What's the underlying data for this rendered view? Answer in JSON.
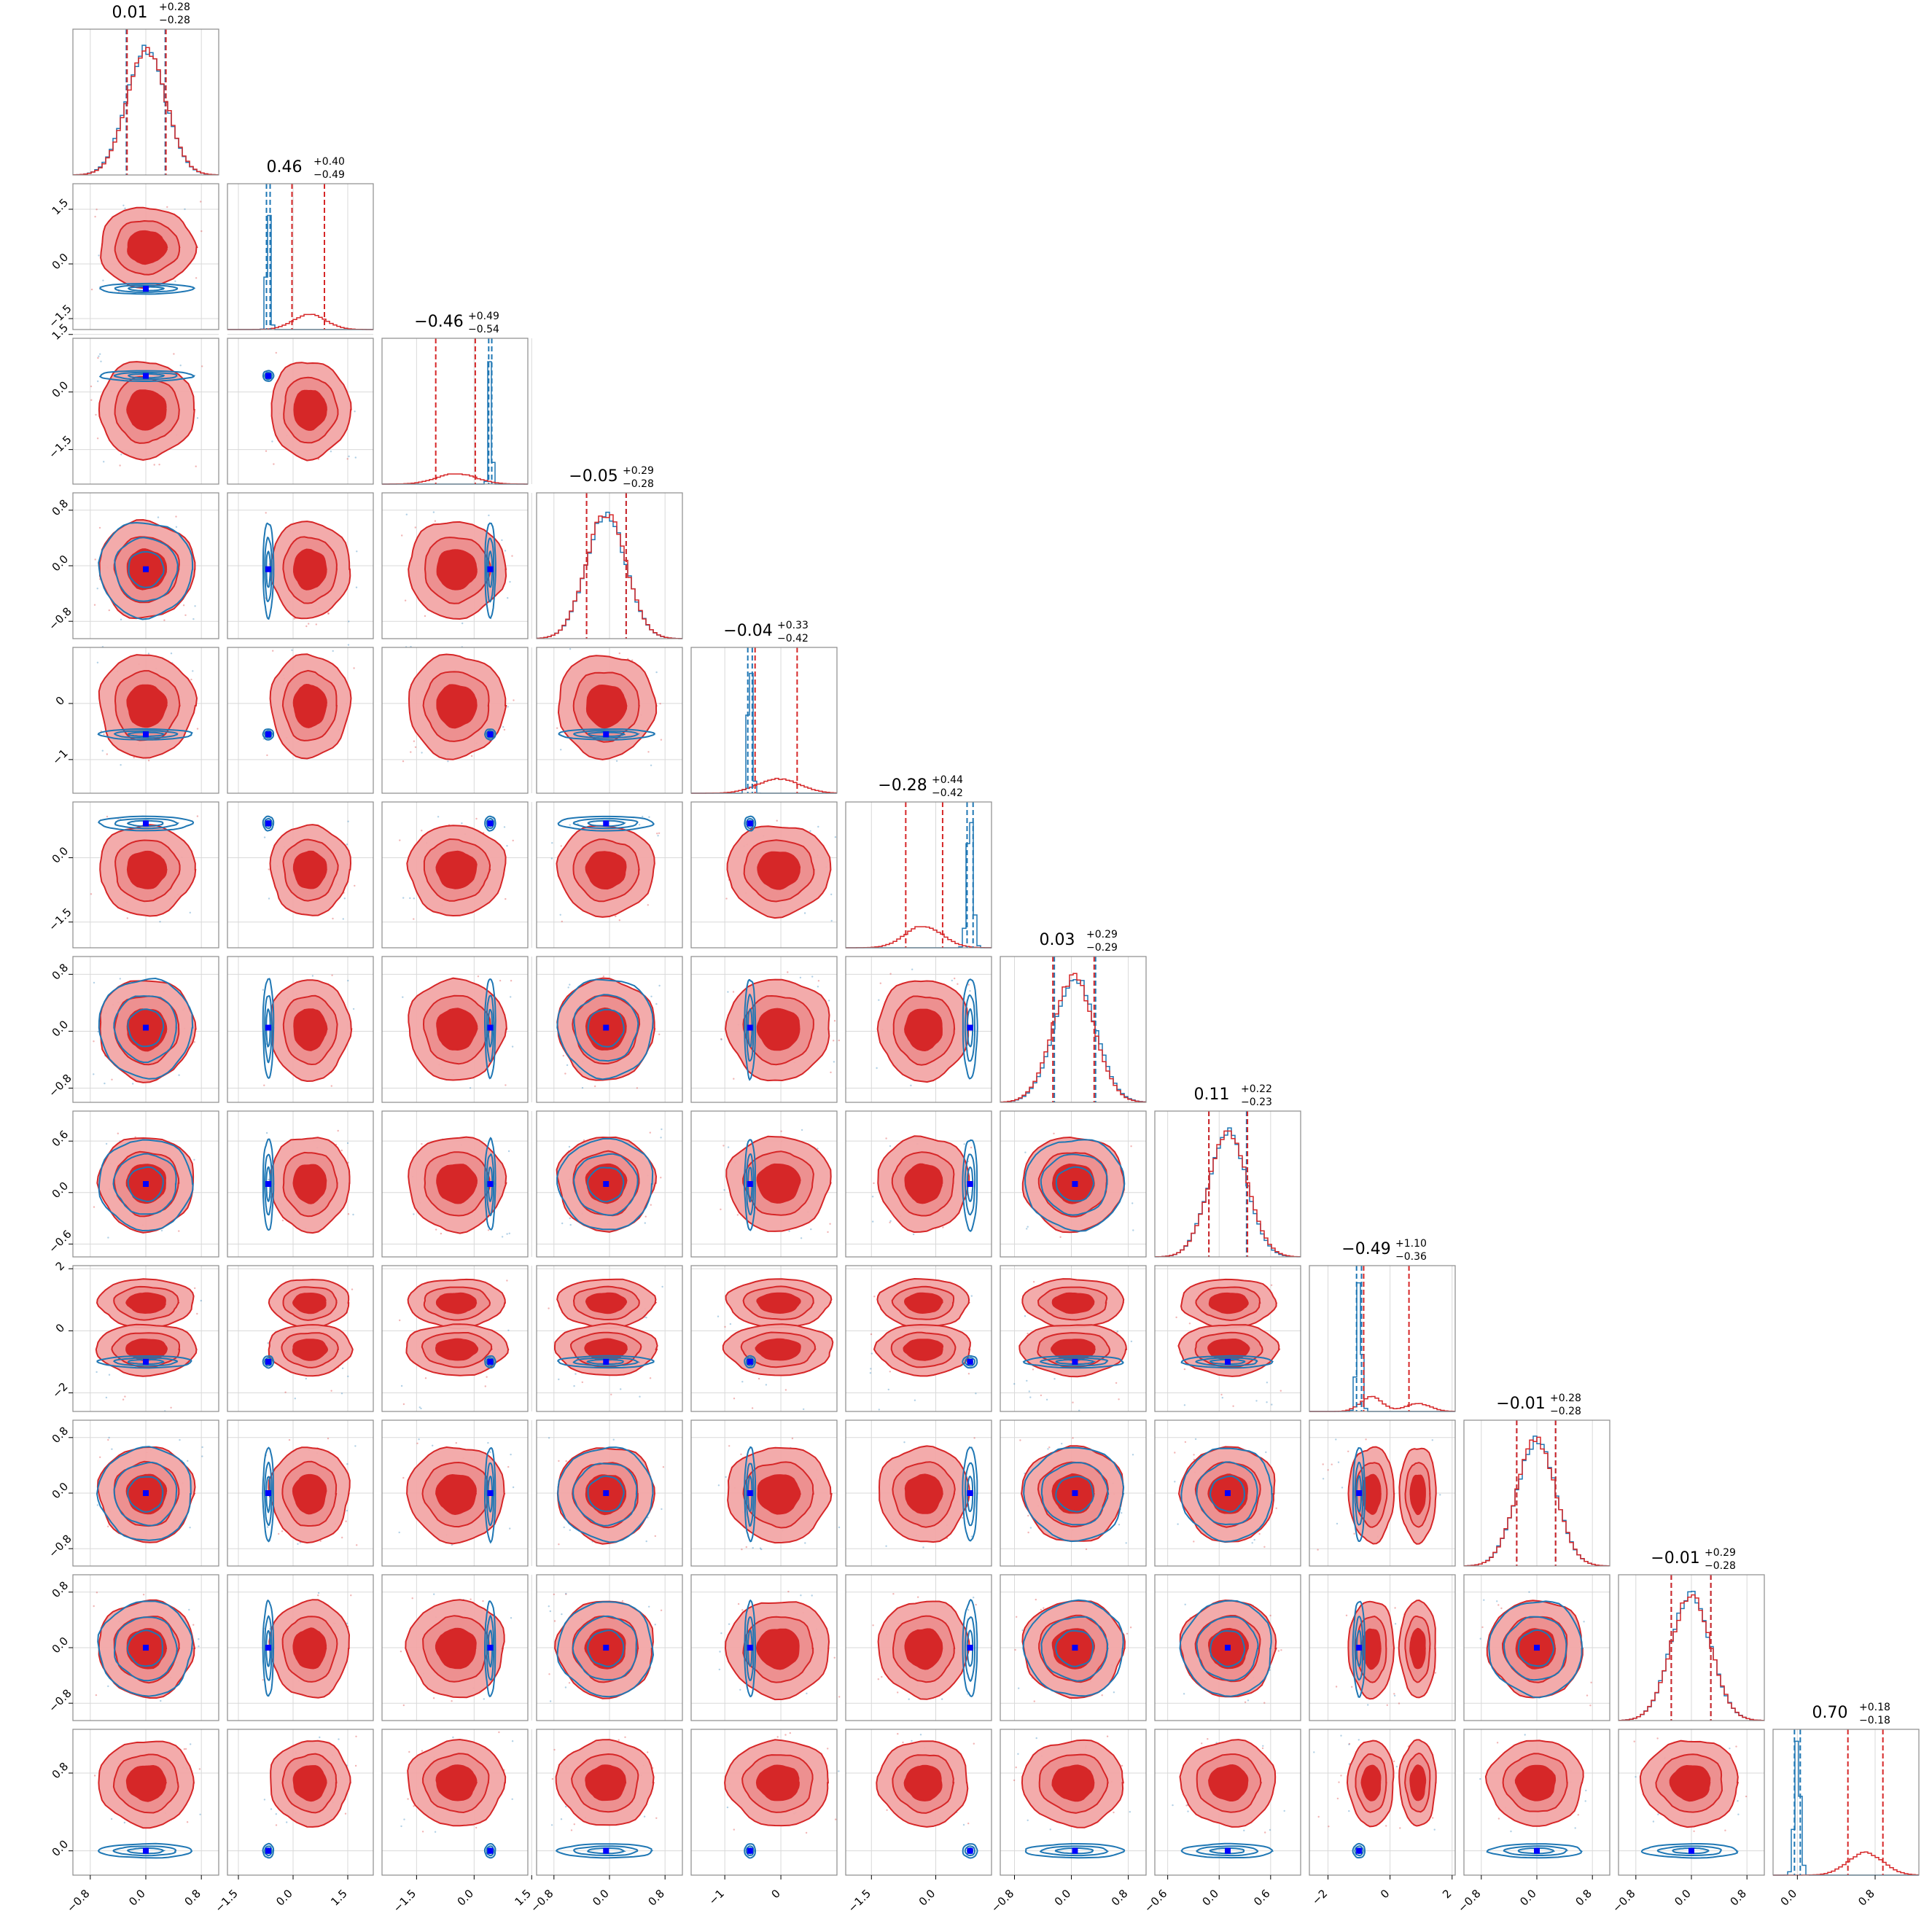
{
  "chart_data": {
    "type": "corner",
    "n_params": 12,
    "series": [
      {
        "name": "",
        "color": "#d62728",
        "style": "filled contours, 1D step histogram"
      },
      {
        "name": "",
        "color": "#1f77b4",
        "style": "line contours, 1D step histogram"
      }
    ],
    "truth_marker_color": "#0000ff",
    "grid": true,
    "diagonal_titles": [
      {
        "value": "0.01",
        "plus": "+0.28",
        "minus": "−0.28"
      },
      {
        "value": "0.46",
        "plus": "+0.40",
        "minus": "−0.49"
      },
      {
        "value": "−0.46",
        "plus": "+0.49",
        "minus": "−0.54"
      },
      {
        "value": "−0.05",
        "plus": "+0.29",
        "minus": "−0.28"
      },
      {
        "value": "−0.04",
        "plus": "+0.33",
        "minus": "−0.42"
      },
      {
        "value": "−0.28",
        "plus": "+0.44",
        "minus": "−0.42"
      },
      {
        "value": "0.03",
        "plus": "+0.29",
        "minus": "−0.29"
      },
      {
        "value": "0.11",
        "plus": "+0.22",
        "minus": "−0.23"
      },
      {
        "value": "−0.49",
        "plus": "+1.10",
        "minus": "−0.36"
      },
      {
        "value": "−0.01",
        "plus": "+0.28",
        "minus": "−0.28"
      },
      {
        "value": "−0.01",
        "plus": "+0.29",
        "minus": "−0.28"
      },
      {
        "value": "0.70",
        "plus": "+0.18",
        "minus": "−0.18"
      }
    ],
    "params": [
      {
        "range": [
          -1.05,
          1.05
        ],
        "ticks": [
          "−0.8",
          "0.0",
          "0.8"
        ],
        "red": [
          0.01,
          0.28,
          0.28
        ],
        "blue": [
          0.0,
          0.28,
          0.28
        ],
        "truth": 0.0
      },
      {
        "range": [
          -1.8,
          2.2
        ],
        "ticks": [
          "−1.5",
          "0.0",
          "1.5"
        ],
        "red": [
          0.46,
          0.4,
          0.49
        ],
        "blue": [
          -0.68,
          0.05,
          0.05
        ],
        "truth": -0.68
      },
      {
        "range": [
          -2.4,
          1.4
        ],
        "ticks": [
          "−1.5",
          "0.0",
          "1.5"
        ],
        "red": [
          -0.46,
          0.49,
          0.54
        ],
        "blue": [
          0.42,
          0.04,
          0.04
        ],
        "truth": 0.42
      },
      {
        "range": [
          -1.05,
          1.05
        ],
        "ticks": [
          "−0.8",
          "0.0",
          "0.8"
        ],
        "red": [
          -0.05,
          0.29,
          0.28
        ],
        "blue": [
          -0.05,
          0.29,
          0.28
        ],
        "truth": -0.05
      },
      {
        "range": [
          -1.6,
          1.0
        ],
        "ticks": [
          "−1",
          "0"
        ],
        "red": [
          -0.04,
          0.33,
          0.42
        ],
        "blue": [
          -0.55,
          0.04,
          0.04
        ],
        "truth": -0.55
      },
      {
        "range": [
          -2.1,
          1.3
        ],
        "ticks": [
          "−1.5",
          "0.0"
        ],
        "red": [
          -0.28,
          0.44,
          0.42
        ],
        "blue": [
          0.8,
          0.07,
          0.07
        ],
        "truth": 0.8
      },
      {
        "range": [
          -1.0,
          1.05
        ],
        "ticks": [
          "−0.8",
          "0.0",
          "0.8"
        ],
        "red": [
          0.03,
          0.29,
          0.29
        ],
        "blue": [
          0.05,
          0.29,
          0.29
        ],
        "truth": 0.05
      },
      {
        "range": [
          -0.75,
          0.95
        ],
        "ticks": [
          "−0.6",
          "0.0",
          "0.6"
        ],
        "red": [
          0.11,
          0.22,
          0.23
        ],
        "blue": [
          0.1,
          0.22,
          0.22
        ],
        "truth": 0.1
      },
      {
        "range": [
          -2.6,
          2.1
        ],
        "ticks": [
          "−2",
          "0",
          "2"
        ],
        "red": [
          -0.49,
          1.1,
          0.36
        ],
        "blue": [
          -1.0,
          0.08,
          0.08
        ],
        "truth": -1.0
      },
      {
        "range": [
          -1.05,
          1.05
        ],
        "ticks": [
          "−0.8",
          "0.0",
          "0.8"
        ],
        "red": [
          -0.01,
          0.28,
          0.28
        ],
        "blue": [
          -0.01,
          0.28,
          0.28
        ],
        "truth": 0.0
      },
      {
        "range": [
          -1.05,
          1.05
        ],
        "ticks": [
          "−0.8",
          "0.0",
          "0.8"
        ],
        "red": [
          -0.01,
          0.29,
          0.28
        ],
        "blue": [
          -0.01,
          0.29,
          0.28
        ],
        "truth": 0.0
      },
      {
        "range": [
          -0.25,
          1.25
        ],
        "ticks": [
          "0.0",
          "0.8"
        ],
        "red": [
          0.7,
          0.18,
          0.18
        ],
        "blue": [
          0.0,
          0.03,
          0.03
        ],
        "truth": 0.0
      }
    ],
    "bimodal_param": {
      "index": 8,
      "modes": [
        -0.6,
        0.9
      ]
    }
  }
}
